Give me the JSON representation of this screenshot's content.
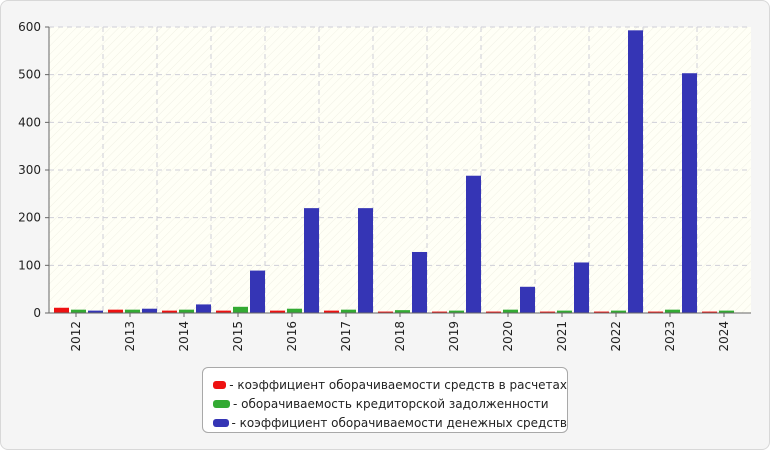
{
  "chart_data": {
    "type": "bar",
    "categories": [
      "2012",
      "2013",
      "2014",
      "2015",
      "2016",
      "2017",
      "2018",
      "2019",
      "2020",
      "2021",
      "2022",
      "2023",
      "2024"
    ],
    "series": [
      {
        "name": "- коэффициент оборачиваемости средств в расчетах",
        "color": "#ee1111",
        "values": [
          11,
          7,
          5,
          5,
          5,
          5,
          3,
          3,
          3,
          3,
          3,
          3,
          3
        ]
      },
      {
        "name": "- оборачиваемость кредиторской задолженности",
        "color": "#33aa33",
        "values": [
          7,
          7,
          7,
          13,
          9,
          7,
          6,
          5,
          7,
          5,
          5,
          7,
          5
        ]
      },
      {
        "name": "- коэффициент оборачиваемости денежных средств",
        "color": "#3535b5",
        "values": [
          5,
          9,
          18,
          89,
          220,
          220,
          128,
          288,
          55,
          106,
          593,
          503,
          null
        ]
      }
    ],
    "ylim": [
      0,
      600
    ],
    "yticks": [
      0,
      100,
      200,
      300,
      400,
      500,
      600
    ],
    "grid": true,
    "legend_position": "bottom"
  }
}
